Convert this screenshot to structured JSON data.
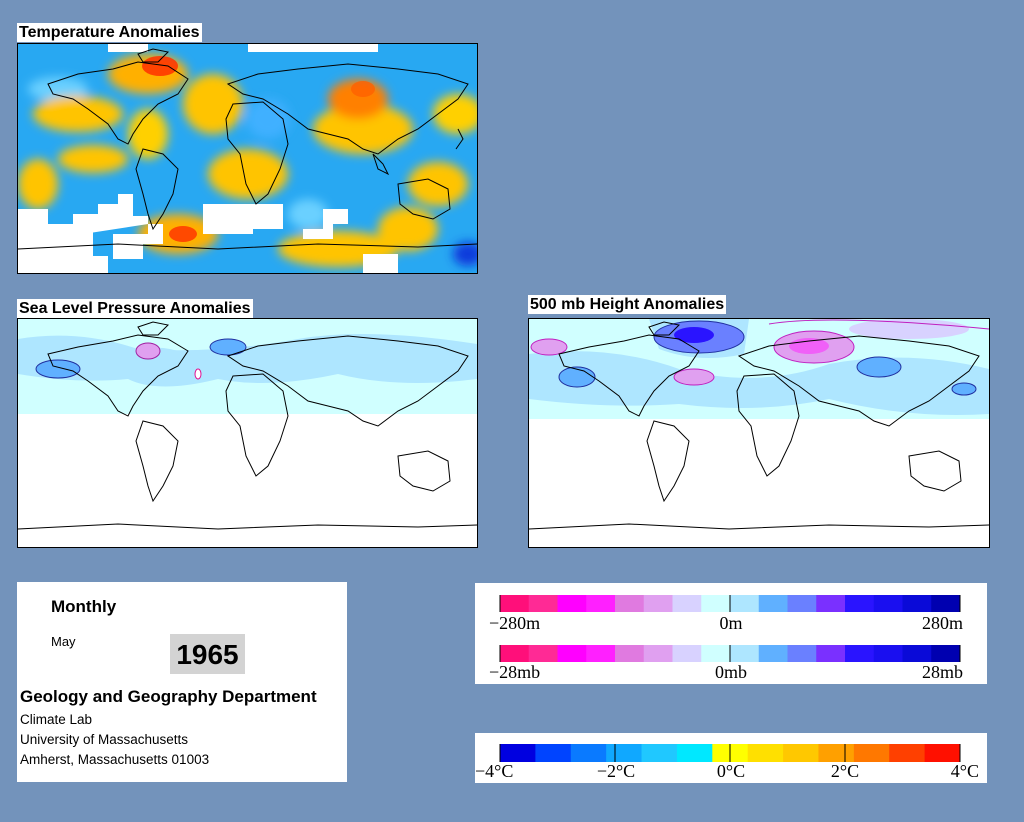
{
  "panels": {
    "temperature": {
      "title": "Temperature Anomalies"
    },
    "slp": {
      "title": "Sea Level Pressure Anomalies"
    },
    "height": {
      "title": "500 mb Height Anomalies"
    }
  },
  "info": {
    "period": "Monthly",
    "month": "May",
    "year": "1965",
    "department": "Geology and Geography Department",
    "lab": "Climate Lab",
    "university": "University of Massachusetts",
    "address": "Amherst, Massachusetts 01003"
  },
  "legends": {
    "height": {
      "colors": [
        "#ff0f7a",
        "#ff2a95",
        "#ff00ff",
        "#ff20ff",
        "#e07ae0",
        "#e0a0f0",
        "#d8d2ff",
        "#d0ffff",
        "#aee6ff",
        "#60b0ff",
        "#6a80ff",
        "#7a30ff",
        "#2a14ff",
        "#1a0ff0",
        "#0a0ad8",
        "#0000b0"
      ],
      "labels": [
        "−280m",
        "0m",
        "280m"
      ]
    },
    "pressure": {
      "colors": [
        "#ff0f7a",
        "#ff2a95",
        "#ff00ff",
        "#ff20ff",
        "#e07ae0",
        "#e0a0f0",
        "#d8d2ff",
        "#d0ffff",
        "#aee6ff",
        "#60b0ff",
        "#6a80ff",
        "#7a30ff",
        "#2a14ff",
        "#1a0ff0",
        "#0a0ad8",
        "#0000b0"
      ],
      "labels": [
        "−28mb",
        "0mb",
        "28mb"
      ]
    },
    "temperature": {
      "colors": [
        "#0000e0",
        "#0044ff",
        "#0a7aff",
        "#10a8ff",
        "#20c8ff",
        "#00e8ff",
        "#ffff00",
        "#ffe000",
        "#ffc800",
        "#ffa000",
        "#ff7800",
        "#ff4000",
        "#ff1000"
      ],
      "labels": [
        "−4°C",
        "−2°C",
        "0°C",
        "2°C",
        "4°C"
      ]
    }
  },
  "colors": {
    "background": "#7393bb",
    "ocean_cold": "#20a8f0",
    "warm": "#ffc000"
  }
}
